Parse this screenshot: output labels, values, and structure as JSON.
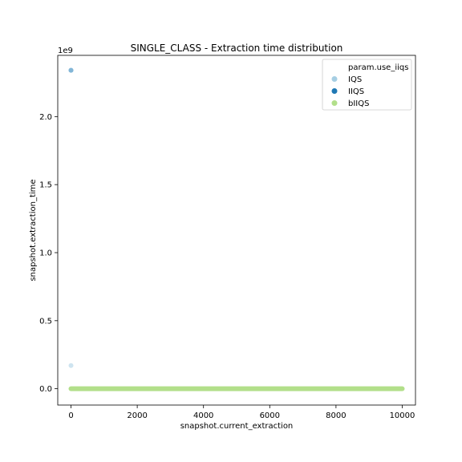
{
  "chart_data": {
    "type": "scatter",
    "title": "SINGLE_CLASS - Extraction time distribution",
    "xlabel": "snapshot.current_extraction",
    "ylabel": "snapshot.extraction_time",
    "y_offset_label": "1e9",
    "xlim": [
      -400,
      10400
    ],
    "ylim": [
      -0.12,
      2.45
    ],
    "x_ticks": [
      0,
      2000,
      4000,
      6000,
      8000,
      10000
    ],
    "x_tick_labels": [
      "0",
      "2000",
      "4000",
      "6000",
      "8000",
      "10000"
    ],
    "y_ticks": [
      0.0,
      0.5,
      1.0,
      1.5,
      2.0
    ],
    "y_tick_labels": [
      "0.0",
      "0.5",
      "1.0",
      "1.5",
      "2.0"
    ],
    "grid": false,
    "legend": {
      "title": "param.use_iiqs",
      "position": "top-right",
      "entries": [
        "IQS",
        "IIQS",
        "bIIQS"
      ]
    },
    "series": [
      {
        "name": "IQS",
        "color": "#a6cee3",
        "points": [
          [
            0,
            2.34
          ],
          [
            0,
            0.17
          ],
          {
            "x_range": [
              0,
              10000
            ],
            "y": 0.0
          }
        ]
      },
      {
        "name": "IIQS",
        "color": "#1f78b4",
        "points": [
          [
            0,
            2.34
          ],
          {
            "x_range": [
              0,
              10000
            ],
            "y": 0.0
          }
        ]
      },
      {
        "name": "bIIQS",
        "color": "#b2df8a",
        "points": [
          {
            "x_range": [
              0,
              10000
            ],
            "y": 0.0
          }
        ]
      }
    ]
  }
}
